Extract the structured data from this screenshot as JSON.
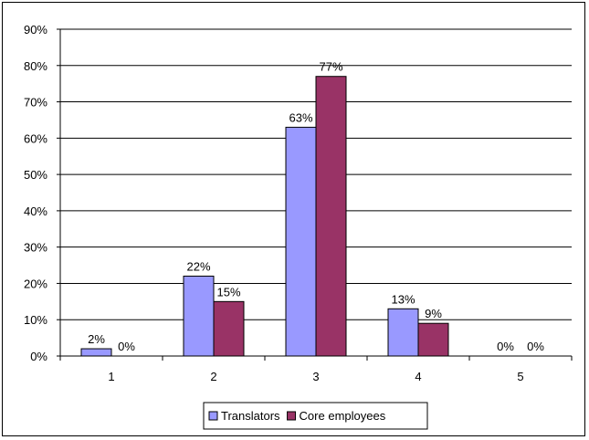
{
  "chart_data": {
    "type": "bar",
    "categories": [
      "1",
      "2",
      "3",
      "4",
      "5"
    ],
    "series": [
      {
        "name": "Translators",
        "values": [
          2,
          22,
          63,
          13,
          0
        ],
        "labels": [
          "2%",
          "22%",
          "63%",
          "13%",
          "0%"
        ],
        "color": "#9999ff"
      },
      {
        "name": "Core employees",
        "values": [
          0,
          15,
          77,
          9,
          0
        ],
        "labels": [
          "0%",
          "15%",
          "77%",
          "9%",
          "0%"
        ],
        "color": "#993366"
      }
    ],
    "y_ticks": [
      "0%",
      "10%",
      "20%",
      "30%",
      "40%",
      "50%",
      "60%",
      "70%",
      "80%",
      "90%"
    ],
    "ylim": [
      0,
      90
    ],
    "grid": true,
    "legend_position": "bottom"
  }
}
